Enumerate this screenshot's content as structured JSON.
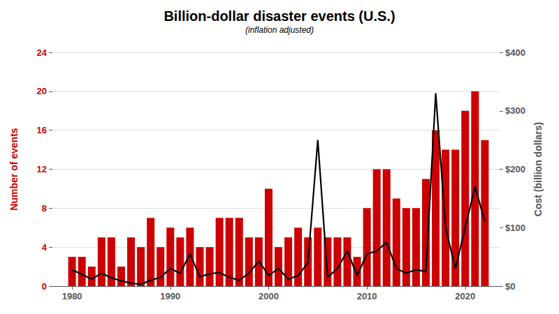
{
  "chart_data": {
    "type": "bar",
    "title": "Billion-dollar disaster events (U.S.)",
    "subtitle": "(inflation adjusted)",
    "x": [
      1980,
      1981,
      1982,
      1983,
      1984,
      1985,
      1986,
      1987,
      1988,
      1989,
      1990,
      1991,
      1992,
      1993,
      1994,
      1995,
      1996,
      1997,
      1998,
      1999,
      2000,
      2001,
      2002,
      2003,
      2004,
      2005,
      2006,
      2007,
      2008,
      2009,
      2010,
      2011,
      2012,
      2013,
      2014,
      2015,
      2016,
      2017,
      2018,
      2019,
      2020,
      2021,
      2022
    ],
    "xlim": [
      1978.0,
      2023.5
    ],
    "xticks": [
      1980,
      1990,
      2000,
      2010,
      2020
    ],
    "ylabel": "Number of events",
    "y2label": "Cost (billion dollars)",
    "ylim": [
      0,
      24
    ],
    "yticks": [
      0,
      4,
      8,
      12,
      16,
      20,
      24
    ],
    "y2lim": [
      0,
      400
    ],
    "y2ticks": [
      {
        "value": 0,
        "label": "$0"
      },
      {
        "value": 100,
        "label": "$100"
      },
      {
        "value": 200,
        "label": "$200"
      },
      {
        "value": 300,
        "label": "$300"
      },
      {
        "value": 400,
        "label": "$400"
      }
    ],
    "grid": true,
    "series": [
      {
        "type": "bar",
        "color": "#cc0000",
        "values": [
          3,
          3,
          2,
          5,
          5,
          2,
          5,
          4,
          7,
          4,
          6,
          5,
          6,
          4,
          4,
          7,
          7,
          7,
          5,
          5,
          10,
          4,
          5,
          6,
          5,
          6,
          5,
          5,
          5,
          3,
          8,
          12,
          12,
          9,
          8,
          8,
          11,
          16,
          14,
          14,
          18,
          20,
          15
        ]
      },
      {
        "type": "line",
        "axis": "y2",
        "color": "#000000",
        "values": [
          28,
          20,
          12,
          22,
          14,
          9,
          5,
          3,
          10,
          15,
          30,
          22,
          55,
          16,
          21,
          23,
          15,
          10,
          22,
          43,
          18,
          30,
          12,
          18,
          40,
          250,
          15,
          30,
          60,
          18,
          55,
          60,
          75,
          30,
          22,
          28,
          25,
          330,
          100,
          30,
          100,
          170,
          110
        ]
      }
    ]
  }
}
